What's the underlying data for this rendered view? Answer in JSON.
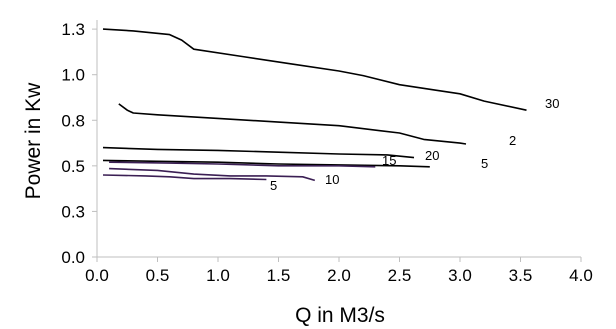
{
  "chart_data": {
    "type": "line",
    "xlabel": "Q in M3/s",
    "ylabel": "Power in Kw",
    "xlim": [
      0,
      4
    ],
    "ylim": [
      0,
      1.3
    ],
    "x_ticks": [
      "0.0",
      "0.5",
      "1.0",
      "1.5",
      "2.0",
      "2.5",
      "3.0",
      "3.5",
      "4.0"
    ],
    "y_ticks": [
      "0.0",
      "0.3",
      "0.5",
      "0.8",
      "1.0",
      "1.3"
    ],
    "grid": false,
    "legend": "none",
    "series": [
      {
        "label": "30",
        "color": "#000000",
        "x": [
          0.05,
          0.3,
          0.6,
          0.7,
          0.8,
          1.2,
          1.6,
          2.0,
          2.2,
          2.5,
          2.8,
          3.0,
          3.2,
          3.55
        ],
        "y": [
          1.25,
          1.24,
          1.22,
          1.19,
          1.14,
          1.1,
          1.06,
          1.02,
          0.995,
          0.945,
          0.915,
          0.895,
          0.855,
          0.805
        ]
      },
      {
        "label": "2",
        "color": "#000000",
        "x": [
          0.18,
          0.25,
          0.3,
          0.5,
          1.0,
          1.5,
          2.0,
          2.5,
          2.7,
          3.0,
          3.05
        ],
        "y": [
          0.84,
          0.805,
          0.79,
          0.78,
          0.76,
          0.74,
          0.72,
          0.68,
          0.645,
          0.625,
          0.62
        ]
      },
      {
        "label": "20",
        "color": "#000000",
        "x": [
          0.05,
          0.5,
          1.0,
          1.5,
          2.0,
          2.4,
          2.62
        ],
        "y": [
          0.6,
          0.59,
          0.585,
          0.575,
          0.565,
          0.56,
          0.545
        ]
      },
      {
        "label": "5",
        "color": "#000000",
        "x": [
          0.05,
          0.5,
          1.0,
          1.5,
          2.0,
          2.5,
          2.75
        ],
        "y": [
          0.53,
          0.525,
          0.52,
          0.51,
          0.505,
          0.5,
          0.495
        ]
      },
      {
        "label": "15",
        "color": "#3b1f54",
        "x": [
          0.1,
          0.6,
          1.0,
          1.5,
          2.0,
          2.3
        ],
        "y": [
          0.52,
          0.515,
          0.51,
          0.5,
          0.5,
          0.495
        ]
      },
      {
        "label": "10",
        "color": "#3b1f54",
        "x": [
          0.1,
          0.5,
          0.8,
          1.1,
          1.4,
          1.7,
          1.8
        ],
        "y": [
          0.485,
          0.475,
          0.455,
          0.445,
          0.445,
          0.44,
          0.42
        ]
      },
      {
        "label": "5",
        "color": "#3b1f54",
        "x": [
          0.05,
          0.4,
          0.6,
          0.8,
          1.1,
          1.4
        ],
        "y": [
          0.45,
          0.445,
          0.44,
          0.43,
          0.43,
          0.425
        ]
      }
    ]
  }
}
